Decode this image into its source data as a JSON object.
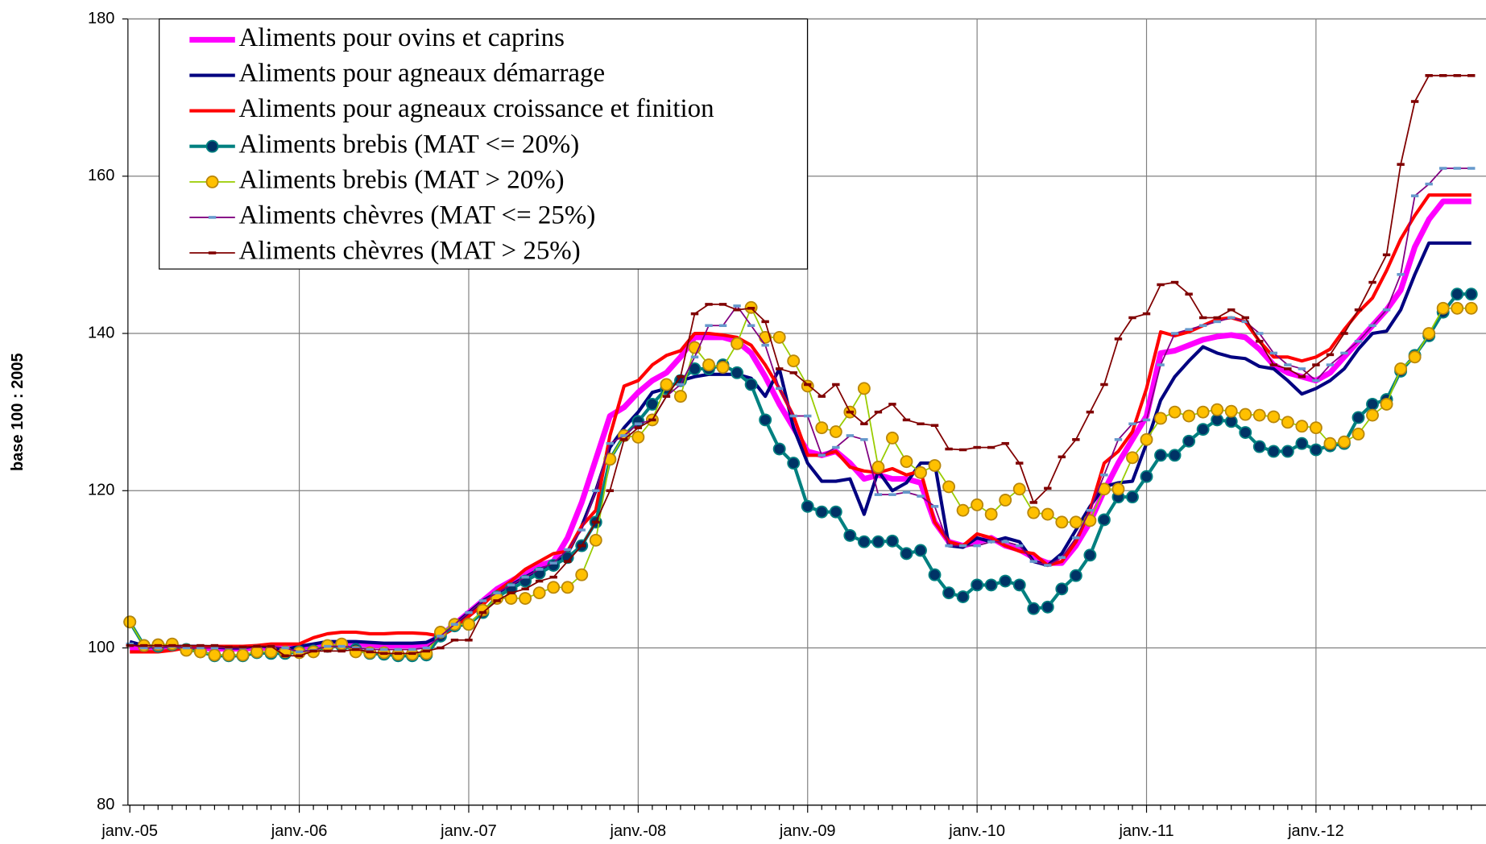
{
  "chart_data": {
    "type": "line",
    "y_label": "base 100 : 2005",
    "ylim": [
      80,
      180
    ],
    "yticks": [
      80,
      100,
      120,
      140,
      160,
      180
    ],
    "grid": true,
    "legend": "upper left",
    "categories": [
      "janv.-05",
      null,
      null,
      null,
      null,
      null,
      null,
      null,
      null,
      null,
      null,
      null,
      "janv.-06",
      null,
      null,
      null,
      null,
      null,
      null,
      null,
      null,
      null,
      null,
      null,
      "janv.-07",
      null,
      null,
      null,
      null,
      null,
      null,
      null,
      null,
      null,
      null,
      null,
      "janv.-08",
      null,
      null,
      null,
      null,
      null,
      null,
      null,
      null,
      null,
      null,
      null,
      "janv.-09",
      null,
      null,
      null,
      null,
      null,
      null,
      null,
      null,
      null,
      null,
      null,
      "janv.-10",
      null,
      null,
      null,
      null,
      null,
      null,
      null,
      null,
      null,
      null,
      null,
      "janv.-11",
      null,
      null,
      null,
      null,
      null,
      null,
      null,
      null,
      null,
      null,
      null,
      "janv.-12",
      null,
      null,
      null,
      null,
      null,
      null,
      null,
      null,
      null,
      null,
      null
    ],
    "series": [
      {
        "name": "Aliments pour ovins et caprins",
        "color": "#ff00ff",
        "line_width": 6,
        "marker": "none",
        "values": [
          100,
          100,
          100,
          100,
          100,
          100,
          99.9,
          99.9,
          99.9,
          100,
          100,
          100,
          100,
          100.3,
          100.5,
          100.5,
          100.5,
          100.4,
          100.3,
          100.3,
          100.3,
          100.5,
          101.5,
          103,
          104.5,
          106,
          107.5,
          108.5,
          109.5,
          110.5,
          111,
          114,
          118.5,
          124,
          129.5,
          130.6,
          132.5,
          134,
          135,
          137,
          139.5,
          139.5,
          139.5,
          139,
          137.5,
          134.5,
          131,
          128,
          125,
          124.5,
          125,
          123.5,
          121.5,
          122,
          121.5,
          121.5,
          121,
          116,
          113.5,
          113,
          113.5,
          114,
          113,
          112.5,
          111.5,
          110.8,
          110.8,
          113,
          116,
          120,
          123.5,
          126.5,
          129.5,
          137.5,
          137.8,
          138.5,
          139.2,
          139.6,
          139.8,
          139.5,
          138,
          136,
          135,
          134.5,
          134,
          135,
          137,
          139,
          141,
          143,
          145.5,
          151,
          154.5,
          156.8,
          156.8,
          156.8
        ]
      },
      {
        "name": "Aliments pour agneaux démarrage",
        "color": "#000080",
        "line_width": 3.5,
        "marker": "none",
        "values": [
          100.8,
          100.3,
          100.2,
          100.2,
          100.2,
          100.2,
          100.1,
          100,
          100,
          100.3,
          100.1,
          99.8,
          100.2,
          100.5,
          100.8,
          100.8,
          100.8,
          100.7,
          100.6,
          100.6,
          100.6,
          100.7,
          101.5,
          103,
          104.5,
          106,
          107,
          108,
          109,
          110,
          110.5,
          112,
          115.5,
          120,
          125.5,
          128,
          130,
          132.5,
          133,
          134,
          134.5,
          134.8,
          134.8,
          134.8,
          134.3,
          132,
          135.5,
          128,
          123.5,
          121.2,
          121.2,
          121.5,
          117,
          122.5,
          120,
          121,
          123.5,
          123.5,
          113,
          112.8,
          114,
          113.5,
          114,
          113.5,
          111,
          110.5,
          112,
          115,
          118,
          120.5,
          121,
          121.2,
          126,
          131.5,
          134.5,
          136.5,
          138.3,
          137.5,
          137,
          136.8,
          135.8,
          135.5,
          134,
          132.3,
          133,
          134,
          135.5,
          138,
          140,
          140.3,
          143,
          147.5,
          151.5,
          151.5,
          151.5,
          151.5
        ]
      },
      {
        "name": "Aliments pour agneaux croissance et finition",
        "color": "#ff0000",
        "line_width": 3.5,
        "marker": "none",
        "values": [
          99.5,
          99.5,
          99.5,
          99.7,
          100,
          100,
          100.2,
          100.2,
          100.2,
          100.3,
          100.5,
          100.5,
          100.5,
          101.3,
          101.8,
          102,
          102,
          101.8,
          101.8,
          101.9,
          101.9,
          101.8,
          101.5,
          102.5,
          104,
          105.5,
          107.2,
          108.5,
          110,
          111,
          112,
          112.3,
          115.5,
          117.5,
          127,
          133.3,
          134,
          136,
          137.2,
          137.8,
          140,
          140,
          139.8,
          139.5,
          138.5,
          136,
          133,
          129.5,
          124.5,
          124.5,
          125,
          123,
          122.5,
          122.3,
          122.8,
          122,
          122.5,
          116,
          113.5,
          113,
          114.5,
          114,
          113,
          112.3,
          112,
          110.5,
          111,
          113.5,
          117.5,
          123.5,
          125,
          127.5,
          133,
          140.2,
          139.7,
          140.2,
          141,
          141.8,
          142,
          141.5,
          139,
          137,
          137,
          136.5,
          137,
          138,
          140.5,
          142.7,
          144.5,
          148,
          152,
          155,
          157.6,
          157.6,
          157.6,
          157.6
        ]
      },
      {
        "name": "Aliments brebis (MAT <= 20%)",
        "color": "#008080",
        "marker_color": "#003366",
        "line_width": 3.5,
        "marker": "circle",
        "values": [
          103.3,
          100.3,
          100.2,
          100.4,
          99.8,
          99.5,
          99,
          99,
          99,
          99.4,
          99.3,
          99.3,
          99.5,
          99.6,
          100.2,
          100.3,
          99.8,
          99.3,
          99.2,
          99,
          99,
          99.1,
          101.5,
          102.8,
          103,
          104.5,
          106.5,
          107.5,
          108.5,
          109.5,
          110.5,
          111.5,
          113,
          116,
          124,
          127,
          128.8,
          131,
          133,
          134,
          135.5,
          135.5,
          136,
          135,
          133.5,
          129,
          125.3,
          123.5,
          118,
          117.3,
          117.3,
          114.3,
          113.5,
          113.5,
          113.6,
          112,
          112.4,
          109.3,
          107,
          106.5,
          108,
          108,
          108.5,
          108,
          105,
          105.2,
          107.5,
          109.2,
          111.8,
          116.3,
          119.2,
          119.2,
          121.8,
          124.5,
          124.5,
          126.3,
          127.8,
          129,
          128.8,
          127.4,
          125.6,
          125,
          125,
          126,
          125.2,
          125.7,
          126,
          129.3,
          131,
          131.6,
          135.2,
          137.2,
          139.7,
          142.7,
          145,
          145
        ]
      },
      {
        "name": "Aliments brebis (MAT > 20%)",
        "color": "#99cc00",
        "marker_color": "#ffc000",
        "line_width": 1.5,
        "marker": "circle",
        "values": [
          103.3,
          100.3,
          100.4,
          100.5,
          99.7,
          99.5,
          99.1,
          99.1,
          99.1,
          99.5,
          99.5,
          99.5,
          99.4,
          99.5,
          100.3,
          100.5,
          99.5,
          99.4,
          99.4,
          99.2,
          99.2,
          99.3,
          102,
          103,
          103,
          104.8,
          106.3,
          106.3,
          106.3,
          107,
          107.7,
          107.7,
          109.3,
          113.7,
          124,
          127,
          126.8,
          129,
          133.5,
          132,
          138.2,
          136,
          135.7,
          138.7,
          143.3,
          139.5,
          139.5,
          136.5,
          133.3,
          128,
          127.5,
          130,
          133,
          123,
          126.7,
          123.7,
          122.3,
          123.2,
          120.5,
          117.5,
          118.2,
          117,
          118.8,
          120.2,
          117.2,
          117,
          116,
          116,
          116.2,
          120.2,
          120.2,
          124.2,
          126.5,
          129.2,
          130,
          129.5,
          130,
          130.3,
          130.1,
          129.7,
          129.6,
          129.4,
          128.7,
          128.2,
          128,
          126,
          126.2,
          127.2,
          129.6,
          131,
          135.5,
          137,
          140,
          143.2,
          143.2,
          143.2
        ]
      },
      {
        "name": "Aliments chèvres (MAT <= 25%)",
        "color": "#800080",
        "marker_color": "#6699cc",
        "line_width": 1.5,
        "marker": "dash",
        "values": [
          100.5,
          100,
          100,
          100.2,
          100,
          100,
          100,
          100,
          100,
          100.2,
          100.2,
          100,
          99.5,
          99.7,
          100.2,
          100.2,
          100,
          99.8,
          99.8,
          99.8,
          99.8,
          100,
          101.5,
          103,
          104.5,
          106,
          107,
          108,
          109,
          110,
          110.8,
          112.5,
          115,
          120,
          126,
          127,
          128.5,
          129,
          132,
          133.5,
          137,
          141,
          141,
          143.5,
          141,
          138.5,
          133,
          129.5,
          129.5,
          124.5,
          125.5,
          127,
          126.5,
          119.5,
          119.5,
          119.8,
          119.3,
          118,
          113,
          113,
          113,
          113.5,
          113.5,
          113,
          111,
          110.5,
          111.5,
          114,
          117.5,
          122,
          126.5,
          128.5,
          129,
          136,
          140,
          140.5,
          141,
          141.5,
          142,
          141.5,
          140,
          137.5,
          136,
          135.5,
          134,
          136,
          137.5,
          139,
          141,
          143,
          147.5,
          157.5,
          159,
          161,
          161,
          161
        ]
      },
      {
        "name": "Aliments chèvres (MAT > 25%)",
        "color": "#800000",
        "marker_color": "#800000",
        "line_width": 1.5,
        "marker": "dash",
        "values": [
          100.3,
          100.3,
          100.3,
          100.3,
          100.3,
          100.3,
          100.3,
          100.1,
          100.1,
          100.2,
          100.2,
          99,
          99,
          99.6,
          99.6,
          99.6,
          99.8,
          99.5,
          99.3,
          99.3,
          99.3,
          99.6,
          100,
          101,
          101,
          104.5,
          106,
          107,
          107.5,
          108.5,
          109,
          111,
          113,
          116,
          120,
          126.5,
          128,
          129,
          132,
          134.5,
          142.5,
          143.7,
          143.7,
          143,
          143.2,
          141.5,
          135.5,
          135,
          133.5,
          132,
          133.5,
          130,
          128.5,
          130,
          131,
          129,
          128.5,
          128.3,
          125.3,
          125.2,
          125.5,
          125.5,
          126,
          123.5,
          118.5,
          120.3,
          124.3,
          126.5,
          130,
          133.5,
          139.3,
          142,
          142.5,
          146.2,
          146.5,
          145,
          142,
          142,
          143,
          142,
          139,
          136,
          135.5,
          134.5,
          136,
          137.3,
          140,
          143,
          146.5,
          150,
          161.5,
          169.5,
          172.8,
          172.8,
          172.8,
          172.8
        ]
      }
    ]
  }
}
